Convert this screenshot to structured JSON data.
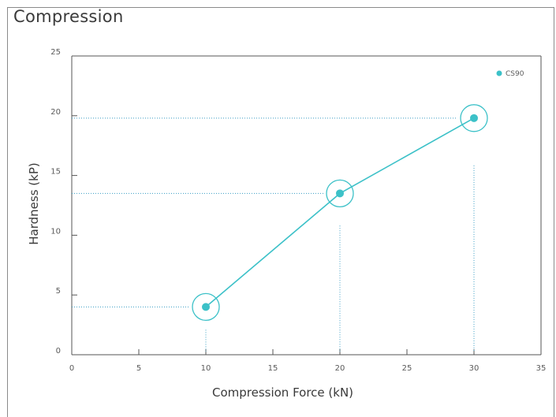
{
  "panel": {
    "title": "Compression"
  },
  "colors": {
    "series": "#3cc1c8",
    "guide": "#3a9ec4",
    "axis": "#555555",
    "text": "#5a5a5a"
  },
  "chart_data": {
    "type": "line",
    "title": "Compression",
    "xlabel": "Compression Force (kN)",
    "ylabel": "Hardness (kP)",
    "xlim": [
      0,
      35
    ],
    "ylim": [
      0,
      25
    ],
    "xticks": [
      0,
      5,
      10,
      15,
      20,
      25,
      30,
      35
    ],
    "yticks": [
      0,
      5,
      10,
      15,
      20,
      25
    ],
    "grid": false,
    "legend_position": "top-right",
    "series": [
      {
        "name": "CS90",
        "points": [
          {
            "x": 10,
            "y": 4
          },
          {
            "x": 20,
            "y": 13.5
          },
          {
            "x": 30,
            "y": 19.8
          }
        ]
      }
    ]
  }
}
